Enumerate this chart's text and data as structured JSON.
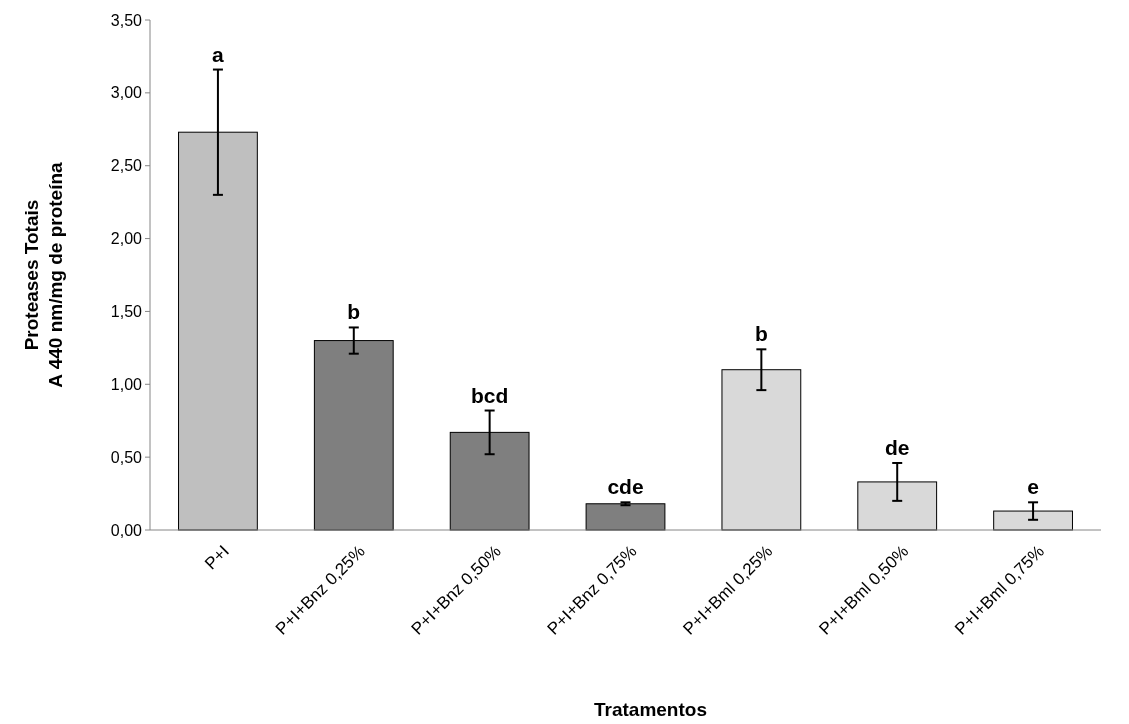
{
  "chart_data": {
    "type": "bar",
    "xlabel": "Tratamentos",
    "ylabel": "Proteases Totais\nA 440 nm/mg de proteína",
    "categories": [
      "P+I",
      "P+I+Bnz 0,25%",
      "P+I+Bnz 0,50%",
      "P+I+Bnz 0,75%",
      "P+I+Bml 0,25%",
      "P+I+Bml 0,50%",
      "P+I+Bml 0,75%"
    ],
    "values": [
      2.73,
      1.3,
      0.67,
      0.18,
      1.1,
      0.33,
      0.13
    ],
    "errors": [
      0.43,
      0.09,
      0.15,
      0.01,
      0.14,
      0.13,
      0.06
    ],
    "colors": [
      "#bfbfbf",
      "#7f7f7f",
      "#7f7f7f",
      "#7f7f7f",
      "#d9d9d9",
      "#d9d9d9",
      "#d9d9d9"
    ],
    "ylim": [
      0,
      3.5
    ],
    "yticks": [
      {
        "value": 0,
        "label": "0,00"
      },
      {
        "value": 0.5,
        "label": "0,50"
      },
      {
        "value": 1,
        "label": "1,00"
      },
      {
        "value": 1.5,
        "label": "1,50"
      },
      {
        "value": 2,
        "label": "2,00"
      },
      {
        "value": 2.5,
        "label": "2,50"
      },
      {
        "value": 3,
        "label": "3,00"
      },
      {
        "value": 3.5,
        "label": "3,50"
      }
    ],
    "annotations": [
      {
        "text": "a",
        "x": "P+I",
        "y": 3.16
      },
      {
        "text": "b",
        "x": "P+I+Bnz 0,25%",
        "y": 1.39
      },
      {
        "text": "bcd",
        "x": "P+I+Bnz 0,50%",
        "y": 0.82
      },
      {
        "text": "cde",
        "x": "P+I+Bnz 0,75%",
        "y": 0.19
      },
      {
        "text": "b",
        "x": "P+I+Bml 0,25%",
        "y": 1.24
      },
      {
        "text": "de",
        "x": "P+I+Bml 0,50%",
        "y": 0.46
      },
      {
        "text": "e",
        "x": "P+I+Bml 0,75%",
        "y": 0.19
      }
    ],
    "grid": false
  }
}
